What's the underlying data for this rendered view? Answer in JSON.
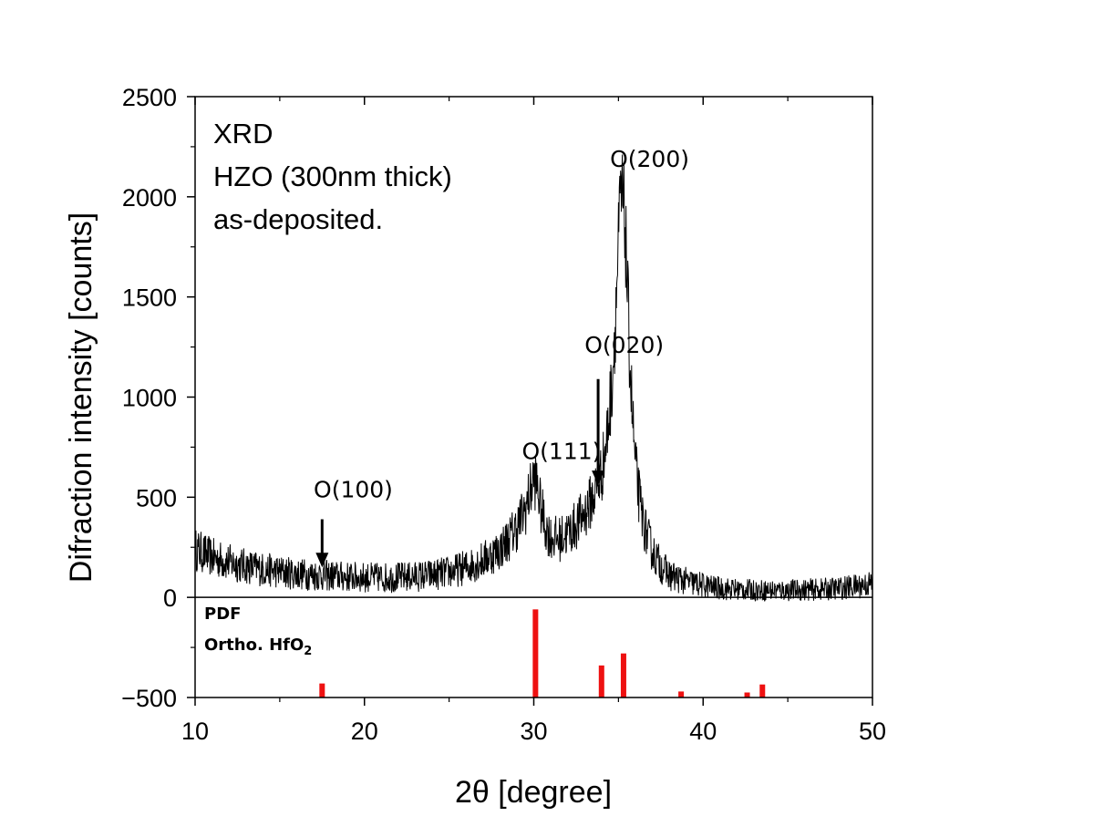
{
  "chart_data": {
    "type": "line",
    "xlabel": "2θ [degree]",
    "ylabel": "Difraction intensity [counts]",
    "xlim": [
      10,
      50
    ],
    "ylim": [
      -500,
      2500
    ],
    "xticks": [
      "10",
      "20",
      "30",
      "40",
      "50"
    ],
    "yticks": [
      "−500",
      "0",
      "500",
      "1000",
      "1500",
      "2000",
      "2500"
    ],
    "xtick_values": [
      10,
      20,
      30,
      40,
      50
    ],
    "ytick_values": [
      -500,
      0,
      500,
      1000,
      1500,
      2000,
      2500
    ],
    "grid": false,
    "info_lines": [
      "XRD",
      "HZO (300nm thick)",
      "as-deposited."
    ],
    "pattern_label": {
      "line1": "PDF",
      "line2_main": "Ortho. HfO",
      "line2_sub": "2"
    },
    "line_color": "#000000",
    "reference_color": "#ee1111",
    "series": [
      {
        "type": "line",
        "x": [
          10,
          11,
          12,
          13,
          14,
          15,
          16,
          17,
          18,
          19,
          20,
          21,
          22,
          23,
          24,
          25,
          26,
          27,
          28,
          28.5,
          29,
          29.5,
          29.8,
          30,
          30.2,
          30.4,
          30.7,
          31,
          31.5,
          32,
          32.5,
          33,
          33.5,
          34,
          34.3,
          34.6,
          34.8,
          35,
          35.1,
          35.2,
          35.4,
          35.6,
          35.8,
          36,
          36.3,
          36.6,
          37,
          37.5,
          38,
          39,
          40,
          41,
          42,
          43,
          44,
          45,
          46,
          47,
          48,
          49,
          50
        ],
        "y": [
          240,
          200,
          175,
          155,
          140,
          128,
          118,
          112,
          108,
          102,
          100,
          98,
          100,
          104,
          112,
          125,
          150,
          185,
          240,
          290,
          350,
          440,
          530,
          600,
          560,
          450,
          350,
          300,
          290,
          320,
          360,
          420,
          500,
          620,
          780,
          1050,
          1350,
          1750,
          1950,
          2000,
          1850,
          1350,
          950,
          650,
          450,
          330,
          230,
          160,
          110,
          80,
          60,
          45,
          40,
          35,
          35,
          35,
          38,
          40,
          45,
          55,
          70
        ]
      },
      {
        "type": "stick",
        "x": [
          17.5,
          30.1,
          34.0,
          35.3,
          38.7,
          42.6,
          43.5
        ],
        "y": [
          -430,
          -60,
          -340,
          -280,
          -470,
          -475,
          -435
        ],
        "base": -500
      }
    ],
    "annotations": [
      {
        "text": "O(100)",
        "x": 17.0,
        "y": 500,
        "arrow": {
          "x": 17.5,
          "y_from": 390,
          "y_to": 150
        }
      },
      {
        "text": "O(111)",
        "x": 29.3,
        "y": 690,
        "arrow": null
      },
      {
        "text": "O(020)",
        "x": 33.0,
        "y": 1220,
        "arrow": {
          "x": 33.8,
          "y_from": 1090,
          "y_to": 560
        }
      },
      {
        "text": "O(200)",
        "x": 34.5,
        "y": 2150,
        "arrow": null
      }
    ]
  }
}
